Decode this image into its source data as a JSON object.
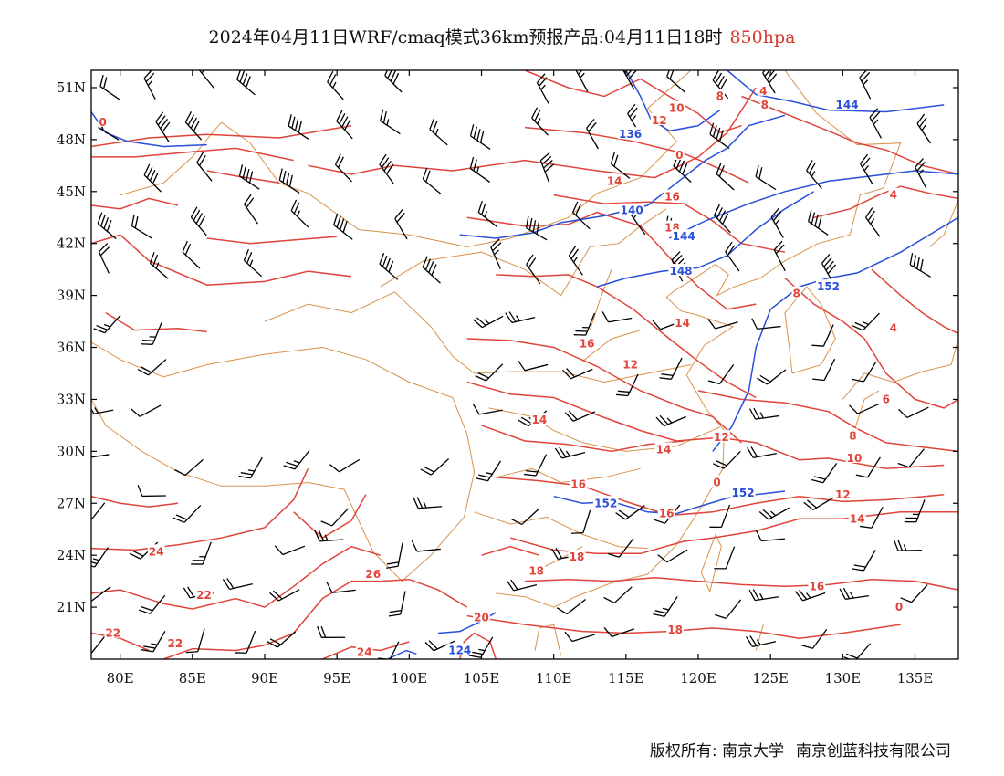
{
  "title": {
    "main": "2024年04月11日WRF/cmaq模式36km预报产品:04月11日18时",
    "level": "850hpa"
  },
  "map": {
    "lon_range": [
      78,
      138
    ],
    "lat_range": [
      18,
      52
    ],
    "lon_ticks": [
      {
        "value": 80,
        "label": "80E"
      },
      {
        "value": 85,
        "label": "85E"
      },
      {
        "value": 90,
        "label": "90E"
      },
      {
        "value": 95,
        "label": "95E"
      },
      {
        "value": 100,
        "label": "100E"
      },
      {
        "value": 105,
        "label": "105E"
      },
      {
        "value": 110,
        "label": "110E"
      },
      {
        "value": 115,
        "label": "115E"
      },
      {
        "value": 120,
        "label": "120E"
      },
      {
        "value": 125,
        "label": "125E"
      },
      {
        "value": 130,
        "label": "130E"
      },
      {
        "value": 135,
        "label": "135E"
      }
    ],
    "lat_ticks": [
      {
        "value": 51,
        "label": "51N"
      },
      {
        "value": 48,
        "label": "48N"
      },
      {
        "value": 45,
        "label": "45N"
      },
      {
        "value": 42,
        "label": "42N"
      },
      {
        "value": 39,
        "label": "39N"
      },
      {
        "value": 36,
        "label": "36N"
      },
      {
        "value": 33,
        "label": "33N"
      },
      {
        "value": 30,
        "label": "30N"
      },
      {
        "value": 27,
        "label": "27N"
      },
      {
        "value": 24,
        "label": "24N"
      },
      {
        "value": 21,
        "label": "21N"
      }
    ],
    "colors": {
      "temperature": "#e0443a",
      "geopotential": "#2a4fd8",
      "boundary": "#d9924a",
      "barb": "#000000",
      "frame": "#000000"
    },
    "temperature_labels": [
      {
        "text": "0",
        "lon": 78.8,
        "lat": 49.0
      },
      {
        "text": "8",
        "lon": 121.5,
        "lat": 50.5
      },
      {
        "text": "4",
        "lon": 124.5,
        "lat": 50.8
      },
      {
        "text": "8",
        "lon": 124.6,
        "lat": 50.0
      },
      {
        "text": "10",
        "lon": 118.5,
        "lat": 49.8
      },
      {
        "text": "12",
        "lon": 117.3,
        "lat": 49.1
      },
      {
        "text": "0",
        "lon": 118.7,
        "lat": 47.1
      },
      {
        "text": "14",
        "lon": 114.2,
        "lat": 45.6
      },
      {
        "text": "16",
        "lon": 118.2,
        "lat": 44.7
      },
      {
        "text": "18",
        "lon": 118.2,
        "lat": 42.9
      },
      {
        "text": "14",
        "lon": 118.9,
        "lat": 37.4
      },
      {
        "text": "16",
        "lon": 112.3,
        "lat": 36.2
      },
      {
        "text": "12",
        "lon": 115.3,
        "lat": 35.0
      },
      {
        "text": "8",
        "lon": 126.8,
        "lat": 39.1
      },
      {
        "text": "4",
        "lon": 133.5,
        "lat": 44.8
      },
      {
        "text": "4",
        "lon": 133.5,
        "lat": 37.1
      },
      {
        "text": "6",
        "lon": 133.0,
        "lat": 33.0
      },
      {
        "text": "8",
        "lon": 130.7,
        "lat": 30.9
      },
      {
        "text": "10",
        "lon": 130.8,
        "lat": 29.6
      },
      {
        "text": "12",
        "lon": 121.6,
        "lat": 30.8
      },
      {
        "text": "12",
        "lon": 130.0,
        "lat": 27.5
      },
      {
        "text": "14",
        "lon": 131.0,
        "lat": 26.1
      },
      {
        "text": "14",
        "lon": 109.0,
        "lat": 31.8
      },
      {
        "text": "14",
        "lon": 117.6,
        "lat": 30.1
      },
      {
        "text": "16",
        "lon": 111.7,
        "lat": 28.1
      },
      {
        "text": "16",
        "lon": 117.8,
        "lat": 26.4
      },
      {
        "text": "16",
        "lon": 128.2,
        "lat": 22.2
      },
      {
        "text": "18",
        "lon": 108.8,
        "lat": 23.1
      },
      {
        "text": "18",
        "lon": 111.6,
        "lat": 23.9
      },
      {
        "text": "18",
        "lon": 118.4,
        "lat": 19.7
      },
      {
        "text": "20",
        "lon": 105.0,
        "lat": 20.4
      },
      {
        "text": "22",
        "lon": 85.8,
        "lat": 21.7
      },
      {
        "text": "22",
        "lon": 79.5,
        "lat": 19.5
      },
      {
        "text": "22",
        "lon": 83.8,
        "lat": 18.9
      },
      {
        "text": "24",
        "lon": 82.5,
        "lat": 24.2
      },
      {
        "text": "26",
        "lon": 97.5,
        "lat": 22.9
      },
      {
        "text": "24",
        "lon": 96.9,
        "lat": 18.4
      },
      {
        "text": "0",
        "lon": 121.3,
        "lat": 28.2
      },
      {
        "text": "0",
        "lon": 133.9,
        "lat": 21.0
      }
    ],
    "geopotential_labels": [
      {
        "text": "136",
        "lon": 115.3,
        "lat": 48.3
      },
      {
        "text": "144",
        "lon": 130.3,
        "lat": 50.0
      },
      {
        "text": "140",
        "lon": 115.4,
        "lat": 43.9
      },
      {
        "text": "144",
        "lon": 119.0,
        "lat": 42.4
      },
      {
        "text": "148",
        "lon": 118.8,
        "lat": 40.4
      },
      {
        "text": "152",
        "lon": 129.0,
        "lat": 39.5
      },
      {
        "text": "152",
        "lon": 113.6,
        "lat": 27.0
      },
      {
        "text": "152",
        "lon": 123.1,
        "lat": 27.6
      },
      {
        "text": "124",
        "lon": 103.5,
        "lat": 18.5
      }
    ]
  },
  "footer": {
    "copyright": "版权所有: 南京大学",
    "company": "南京创蓝科技有限公司"
  }
}
